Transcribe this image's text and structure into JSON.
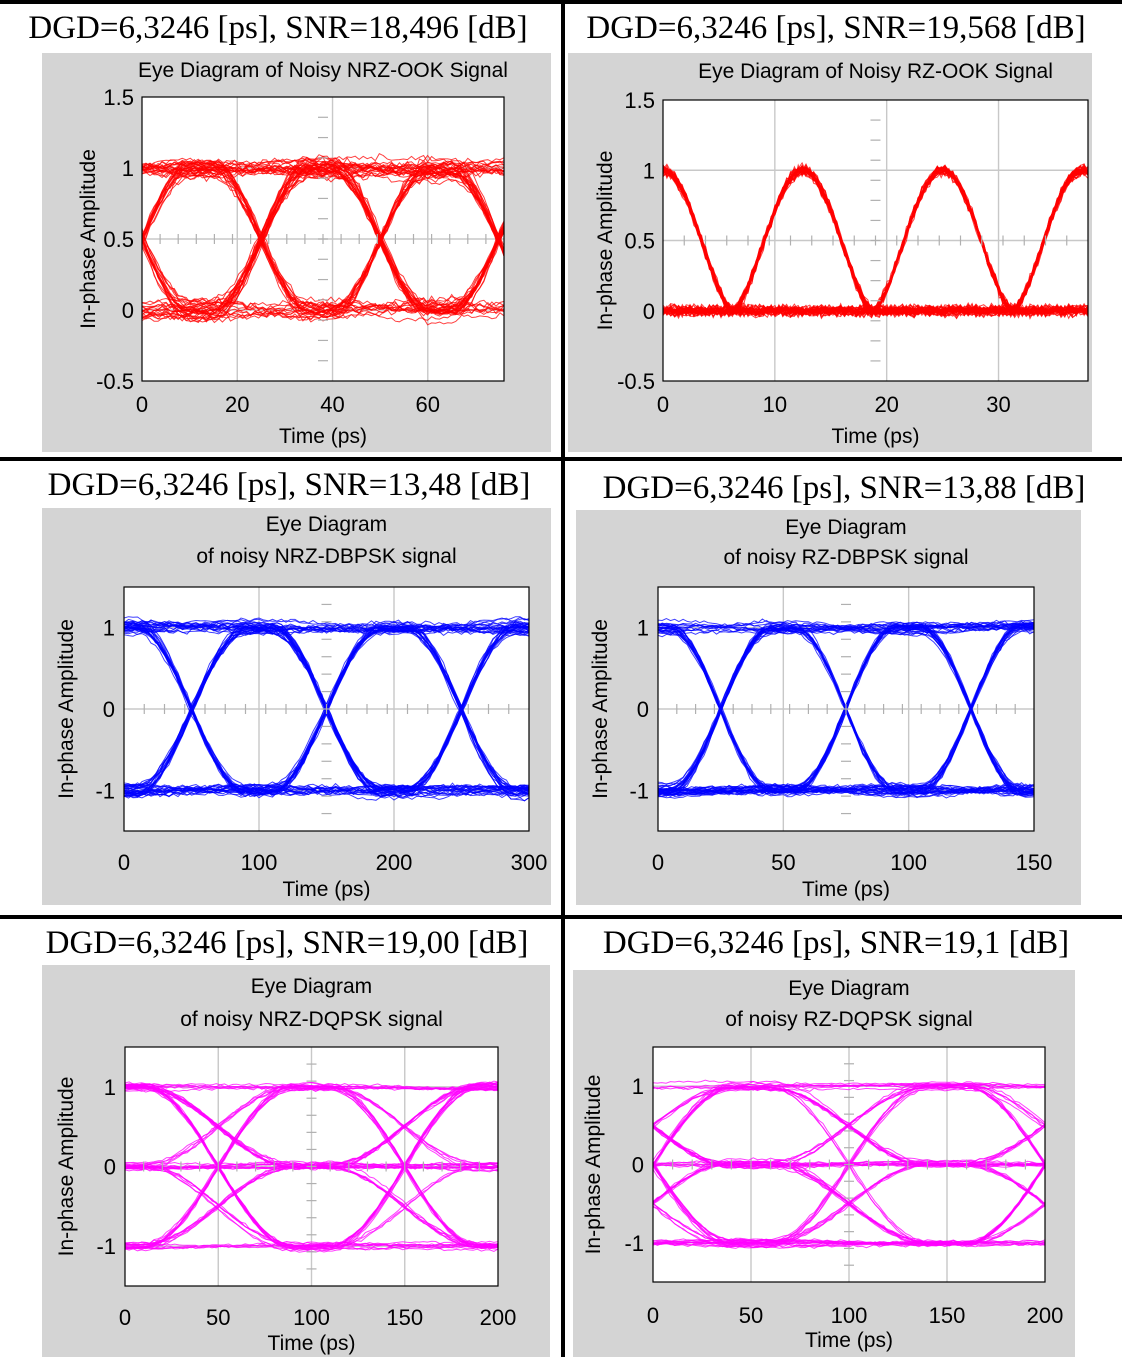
{
  "colors": {
    "background": "#ffffff",
    "panel": "#d4d4d4",
    "plot": "#ffffff",
    "grid": "#c8c8c8",
    "separator": "#000000"
  },
  "chart_data": [
    {
      "type": "line",
      "header": "DGD=6,3246 [ps], SNR=18,496 [dB]",
      "title": [
        "Eye Diagram of Noisy NRZ-OOK Signal"
      ],
      "xlabel": "Time (ps)",
      "ylabel": "In-phase Amplitude",
      "xlim": [
        0,
        76
      ],
      "ylim": [
        -0.5,
        1.5
      ],
      "xticks": [
        0,
        20,
        40,
        60
      ],
      "yticks": [
        -0.5,
        0,
        0.5,
        1,
        1.5
      ],
      "ytick_labels": [
        "-0.5",
        "0",
        "0.5",
        "1",
        "1.5"
      ],
      "color": "#ff0000",
      "eye": {
        "format": "NRZ",
        "levels": [
          0,
          1
        ],
        "period": 25,
        "crossing_offset": 0,
        "noise": 0.09
      },
      "grid": true
    },
    {
      "type": "line",
      "header": "DGD=6,3246 [ps], SNR=19,568 [dB]",
      "title": [
        "Eye Diagram of Noisy RZ-OOK Signal"
      ],
      "xlabel": "Time (ps)",
      "ylabel": "In-phase Amplitude",
      "xlim": [
        0,
        38
      ],
      "ylim": [
        -0.5,
        1.5
      ],
      "xticks": [
        0,
        10,
        20,
        30
      ],
      "yticks": [
        -0.5,
        0,
        0.5,
        1,
        1.5
      ],
      "ytick_labels": [
        "-0.5",
        "0",
        "0.5",
        "1",
        "1.5"
      ],
      "color": "#ff0000",
      "eye": {
        "format": "RZ-OOK",
        "levels": [
          0,
          1
        ],
        "period": 12.5,
        "crossing_offset": 6.25,
        "noise": 0.05
      },
      "grid": true
    },
    {
      "type": "line",
      "header": "DGD=6,3246 [ps], SNR=13,48 [dB]",
      "title": [
        "Eye Diagram",
        "of noisy NRZ-DBPSK signal"
      ],
      "xlabel": "Time (ps)",
      "ylabel": "In-phase Amplitude",
      "xlim": [
        0,
        300
      ],
      "ylim": [
        -1.5,
        1.5
      ],
      "xticks": [
        0,
        100,
        200,
        300
      ],
      "yticks": [
        -1,
        0,
        1
      ],
      "ytick_labels": [
        "-1",
        "0",
        "1"
      ],
      "color": "#0000ff",
      "eye": {
        "format": "NRZ",
        "levels": [
          -1,
          1
        ],
        "period": 100,
        "crossing_offset": 50,
        "noise": 0.11
      },
      "grid": true
    },
    {
      "type": "line",
      "header": "DGD=6,3246 [ps], SNR=13,88 [dB]",
      "title": [
        "Eye Diagram",
        "of noisy RZ-DBPSK signal"
      ],
      "xlabel": "Time (ps)",
      "ylabel": "In-phase Amplitude",
      "xlim": [
        0,
        150
      ],
      "ylim": [
        -1.5,
        1.5
      ],
      "xticks": [
        0,
        50,
        100,
        150
      ],
      "yticks": [
        -1,
        0,
        1
      ],
      "ytick_labels": [
        "-1",
        "0",
        "1"
      ],
      "color": "#0000ff",
      "eye": {
        "format": "NRZ",
        "levels": [
          -1,
          1
        ],
        "period": 50,
        "crossing_offset": 25,
        "noise": 0.09
      },
      "grid": true
    },
    {
      "type": "line",
      "header": "DGD=6,3246 [ps], SNR=19,00 [dB]",
      "title": [
        "Eye Diagram",
        "of noisy NRZ-DQPSK signal"
      ],
      "xlabel": "Time (ps)",
      "ylabel": "In-phase Amplitude",
      "xlim": [
        0,
        200
      ],
      "ylim": [
        -1.5,
        1.5
      ],
      "xticks": [
        0,
        50,
        100,
        150,
        200
      ],
      "yticks": [
        -1,
        0,
        1
      ],
      "ytick_labels": [
        "-1",
        "0",
        "1"
      ],
      "color": "#ff00ff",
      "eye": {
        "format": "NRZ",
        "levels": [
          -1,
          0,
          1
        ],
        "period": 100,
        "crossing_offset": 50,
        "noise": 0.06
      },
      "grid": true
    },
    {
      "type": "line",
      "header": "DGD=6,3246 [ps], SNR=19,1 [dB]",
      "title": [
        "Eye Diagram",
        "of noisy RZ-DQPSK signal"
      ],
      "xlabel": "Time (ps)",
      "ylabel": "In-phase Amplitude",
      "xlim": [
        0,
        200
      ],
      "ylim": [
        -1.5,
        1.5
      ],
      "xticks": [
        0,
        50,
        100,
        150,
        200
      ],
      "yticks": [
        -1,
        0,
        1
      ],
      "ytick_labels": [
        "-1",
        "0",
        "1"
      ],
      "color": "#ff00ff",
      "eye": {
        "format": "NRZ",
        "levels": [
          -1,
          0,
          1
        ],
        "period": 100,
        "crossing_offset": 0,
        "noise": 0.06
      },
      "grid": true
    }
  ]
}
